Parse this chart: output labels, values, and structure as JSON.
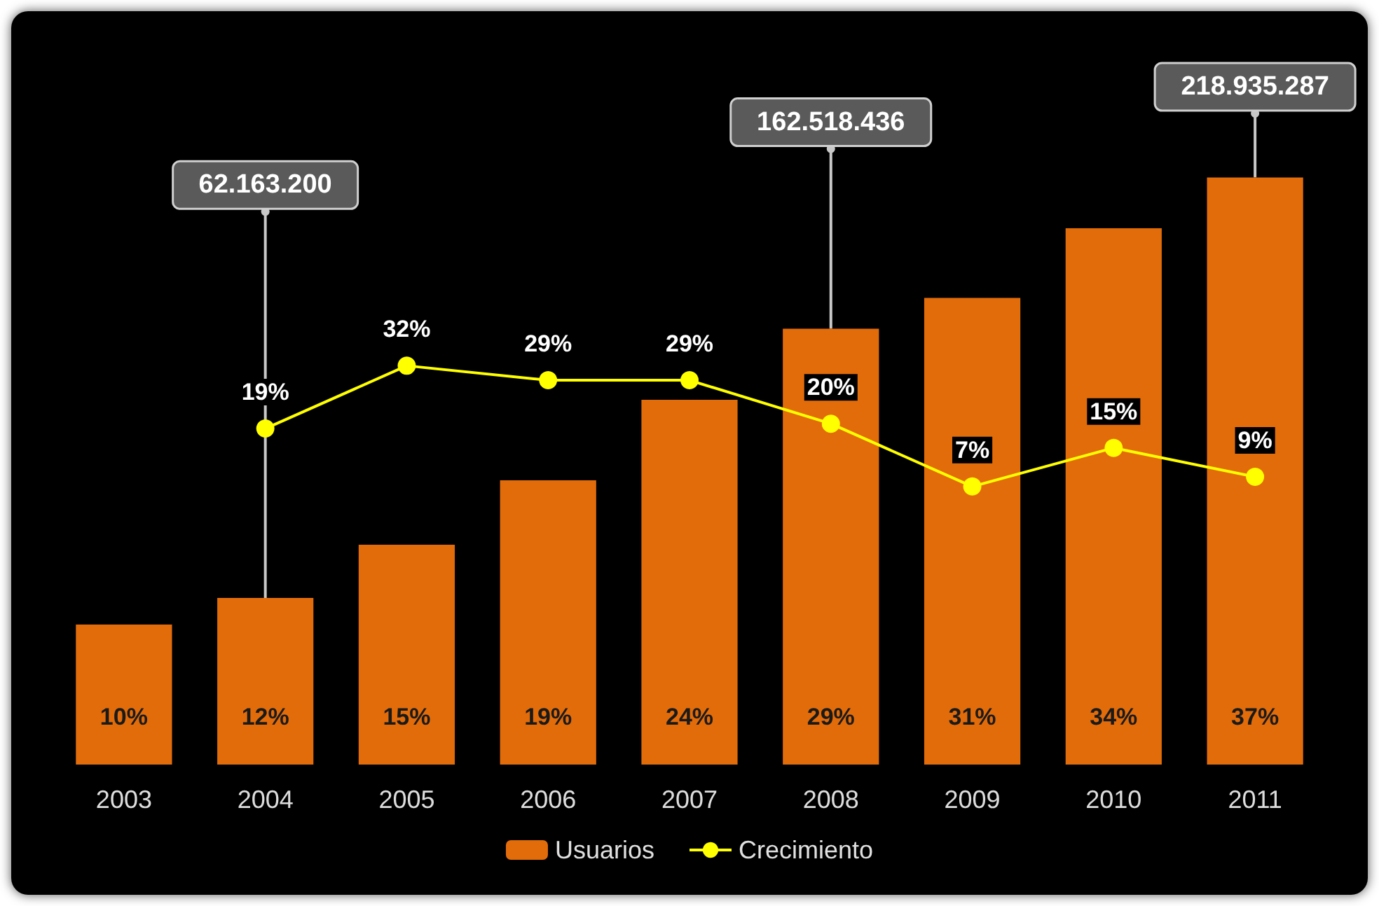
{
  "chart_data": {
    "type": "bar",
    "categories": [
      "2003",
      "2004",
      "2005",
      "2006",
      "2007",
      "2008",
      "2009",
      "2010",
      "2011"
    ],
    "series": [
      {
        "name": "Usuarios",
        "color": "#e36c0a",
        "values": [
          52200000,
          62163200,
          82000000,
          106000000,
          136000000,
          162518436,
          174000000,
          200000000,
          218935287
        ],
        "value_labels": [
          null,
          "62.163.200",
          null,
          null,
          null,
          "162.518.436",
          null,
          null,
          "218.935.287"
        ]
      },
      {
        "name": "Crecimiento",
        "type": "line",
        "axis": "y2",
        "color": "#ffff00",
        "values": [
          null,
          19,
          32,
          29,
          29,
          20,
          7,
          15,
          9
        ],
        "value_labels": [
          null,
          "19%",
          "32%",
          "29%",
          "29%",
          "20%",
          "7%",
          "15%",
          "9%"
        ]
      }
    ],
    "annotations": [
      "10%",
      "12%",
      "15%",
      "19%",
      "24%",
      "29%",
      "31%",
      "34%",
      "37%"
    ],
    "legend": "bottom",
    "marker": "circle",
    "line_style": "solid",
    "grid": false
  }
}
